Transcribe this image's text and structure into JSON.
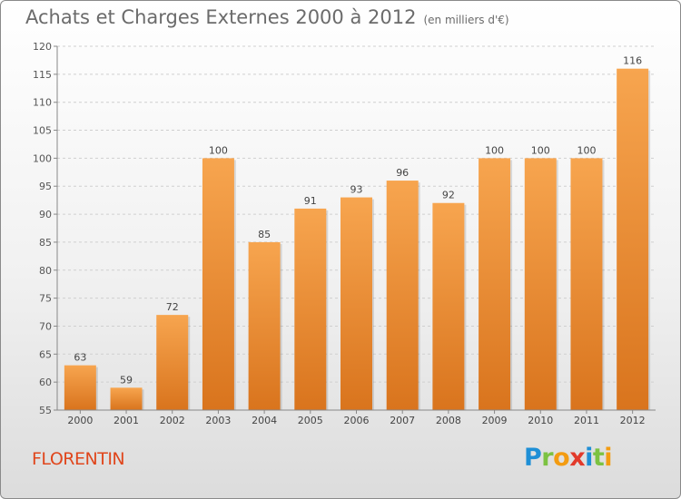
{
  "header": {
    "title": "Achats et Charges Externes 2000 à 2012",
    "unit": "(en milliers d'€)"
  },
  "footer": {
    "commune": "FLORENTIN",
    "brand_letters": [
      {
        "char": "P",
        "color": "#1e8fd6"
      },
      {
        "char": "r",
        "color": "#7cc242"
      },
      {
        "char": "o",
        "color": "#f39c12"
      },
      {
        "char": "x",
        "color": "#e23a2b"
      },
      {
        "char": "i",
        "color": "#1e8fd6"
      },
      {
        "char": "t",
        "color": "#7cc242"
      },
      {
        "char": "i",
        "color": "#f39c12"
      }
    ]
  },
  "chart_data": {
    "type": "bar",
    "title": "Achats et Charges Externes 2000 à 2012",
    "subtitle": "(en milliers d'€)",
    "categories": [
      "2000",
      "2001",
      "2002",
      "2003",
      "2004",
      "2005",
      "2006",
      "2007",
      "2008",
      "2009",
      "2010",
      "2011",
      "2012"
    ],
    "values": [
      63,
      59,
      72,
      100,
      85,
      91,
      93,
      96,
      92,
      100,
      100,
      100,
      116
    ],
    "ylim": [
      55,
      120
    ],
    "yticks": [
      55,
      60,
      65,
      70,
      75,
      80,
      85,
      90,
      95,
      100,
      105,
      110,
      115,
      120
    ],
    "grid": true,
    "bar_color_top": "#f7a54f",
    "bar_color_bottom": "#d9741d"
  }
}
